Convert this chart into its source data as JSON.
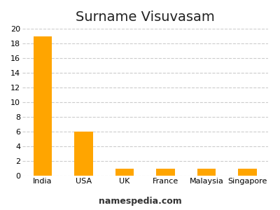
{
  "title": "Surname Visuvasam",
  "categories": [
    "India",
    "USA",
    "UK",
    "France",
    "Malaysia",
    "Singapore"
  ],
  "values": [
    19,
    6,
    1,
    1,
    1,
    1
  ],
  "bar_color": "#FFA500",
  "ylim": [
    0,
    20
  ],
  "yticks": [
    0,
    2,
    4,
    6,
    8,
    10,
    12,
    14,
    16,
    18,
    20
  ],
  "grid_color": "#cccccc",
  "background_color": "#ffffff",
  "title_fontsize": 14,
  "tick_fontsize": 8,
  "footer_text": "namespedia.com",
  "footer_fontsize": 9,
  "bar_width": 0.45
}
